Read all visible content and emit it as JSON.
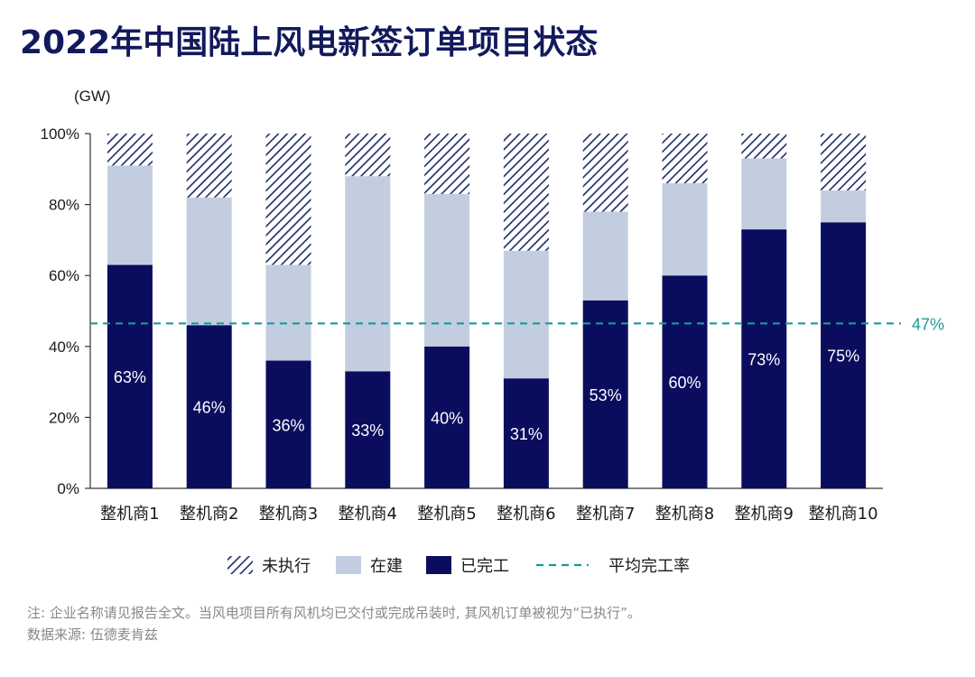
{
  "title": "2022年中国陆上风电新签订单项目状态",
  "note": "注: 企业名称请见报告全文。当风电项目所有风机均已交付或完成吊装时, 其风机订单被视为“已执行”。",
  "source": "数据来源: 伍德麦肯兹",
  "colors": {
    "completed": "#0a0d5e",
    "under_construction": "#c3cde0",
    "unexecuted": "#1d2a66",
    "average_line": "#1a9a9a",
    "title": "#121a5c"
  },
  "chart_data": {
    "type": "bar",
    "stacked": true,
    "unit_label": "(GW)",
    "ylim": [
      0,
      100
    ],
    "yticks": [
      "0%",
      "20%",
      "40%",
      "60%",
      "80%",
      "100%"
    ],
    "categories": [
      "整机商1",
      "整机商2",
      "整机商3",
      "整机商4",
      "整机商5",
      "整机商6",
      "整机商7",
      "整机商8",
      "整机商9",
      "整机商10"
    ],
    "series": [
      {
        "name": "已完工",
        "key": "completed",
        "values": [
          63,
          46,
          36,
          33,
          40,
          31,
          53,
          60,
          73,
          75
        ],
        "labels": [
          "63%",
          "46%",
          "36%",
          "33%",
          "40%",
          "31%",
          "53%",
          "60%",
          "73%",
          "75%"
        ]
      },
      {
        "name": "在建",
        "key": "under_construction",
        "values": [
          28,
          36,
          27,
          55,
          43,
          36,
          25,
          26,
          20,
          9
        ]
      },
      {
        "name": "未执行",
        "key": "unexecuted",
        "values": [
          9,
          18,
          37,
          12,
          17,
          33,
          22,
          14,
          7,
          16
        ]
      }
    ],
    "average": {
      "name": "平均完工率",
      "value": 47,
      "label": "47%"
    },
    "legend": [
      "未执行",
      "在建",
      "已完工",
      "平均完工率"
    ],
    "legend_position": "bottom",
    "grid": false
  }
}
